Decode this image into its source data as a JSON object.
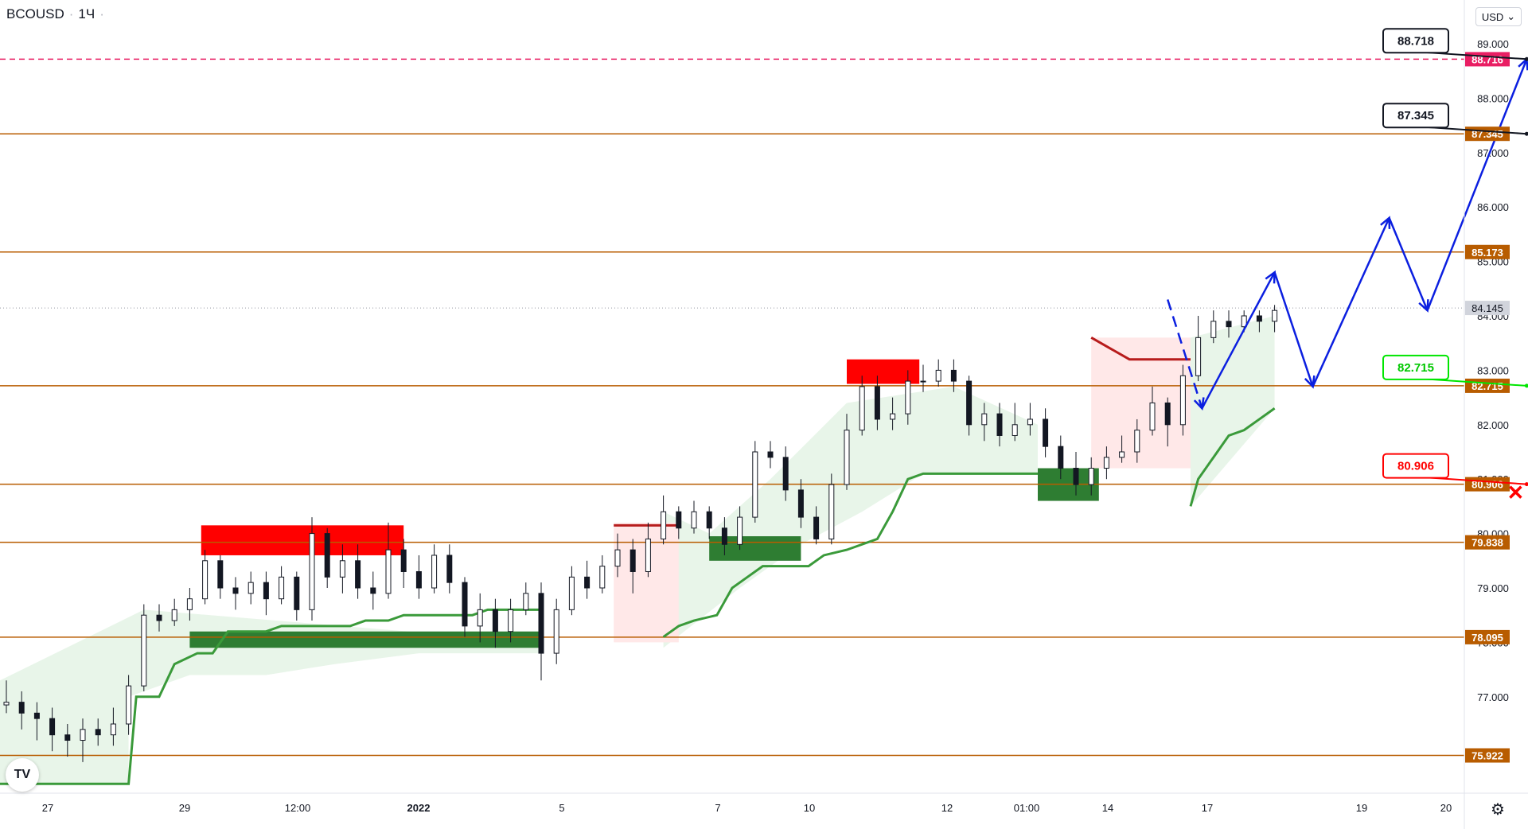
{
  "header": {
    "symbol": "BCOUSD",
    "separator": "·",
    "timeframe": "1Ч",
    "more": "·"
  },
  "currency_button": {
    "label": "USD",
    "icon": "chevron-down-icon"
  },
  "logo_text": "TV",
  "settings_icon": "gear-icon",
  "colors": {
    "level_line": "#b85c00",
    "level_label_bg": "#b85c00",
    "resistance_zone": "#ff0000",
    "support_zone": "#2e7d32",
    "forecast": "#0b1fe0",
    "stop_level": "#e91e63",
    "trend_line": "#3a9a3a",
    "trend_fill": "#e8f5e9",
    "bear_line": "#b71c1c",
    "bear_fill": "#ffe8e8",
    "candles": "#131722",
    "target_box_green": "#00e600",
    "target_box_red": "#ff0000"
  },
  "chart_data": {
    "type": "candlestick",
    "symbol": "BCOUSD",
    "interval": "1Ч",
    "currency": "USD",
    "ylim": [
      75.4,
      89.4
    ],
    "y_ticks": [
      "77.000",
      "78.000",
      "79.000",
      "80.000",
      "81.000",
      "82.000",
      "83.000",
      "84.000",
      "85.000",
      "86.000",
      "87.000",
      "88.000",
      "89.000"
    ],
    "x_ticks": [
      "27",
      "29",
      "12:00",
      "2022",
      "5",
      "7",
      "10",
      "12",
      "01:00",
      "14",
      "17",
      "19",
      "20"
    ],
    "current_price": "84.145",
    "stop_line": "88.716",
    "horizontal_levels": [
      "87.345",
      "85.173",
      "82.715",
      "80.906",
      "79.838",
      "78.095",
      "75.922"
    ],
    "target_labels": [
      {
        "text": "88.718",
        "style": "dark"
      },
      {
        "text": "87.345",
        "style": "dark"
      },
      {
        "text": "82.715",
        "style": "green"
      },
      {
        "text": "80.906",
        "style": "red"
      }
    ],
    "resistance_zones": [
      {
        "from_x": 28.55,
        "to_x": 31.2,
        "y_low": 79.6,
        "y_high": 80.15
      },
      {
        "from_x": 37.0,
        "to_x": 37.95,
        "y_low": 82.75,
        "y_high": 83.2
      }
    ],
    "support_zones": [
      {
        "from_x": 28.4,
        "to_x": 33.0,
        "y_low": 77.9,
        "y_high": 78.2
      },
      {
        "from_x": 35.2,
        "to_x": 36.4,
        "y_low": 79.5,
        "y_high": 79.95
      },
      {
        "from_x": 39.5,
        "to_x": 40.3,
        "y_low": 80.6,
        "y_high": 81.2
      }
    ],
    "forecast_path": [
      {
        "x": 41.2,
        "y": 84.3
      },
      {
        "x": 41.65,
        "y": 82.3
      },
      {
        "x": 42.6,
        "y": 84.8
      },
      {
        "x": 43.1,
        "y": 82.7
      },
      {
        "x": 44.1,
        "y": 85.8
      },
      {
        "x": 44.6,
        "y": 84.1
      },
      {
        "x": 45.9,
        "y": 88.718
      }
    ],
    "candles": [
      [
        26.0,
        76.85,
        76.9,
        77.3,
        76.7
      ],
      [
        26.2,
        76.9,
        76.7,
        77.1,
        76.4
      ],
      [
        26.4,
        76.7,
        76.6,
        76.9,
        76.2
      ],
      [
        26.6,
        76.6,
        76.3,
        76.8,
        76.0
      ],
      [
        26.8,
        76.3,
        76.2,
        76.5,
        75.9
      ],
      [
        27.0,
        76.2,
        76.4,
        76.6,
        75.8
      ],
      [
        27.2,
        76.4,
        76.3,
        76.6,
        76.1
      ],
      [
        27.4,
        76.3,
        76.5,
        76.8,
        76.1
      ],
      [
        27.6,
        76.5,
        77.2,
        77.4,
        76.3
      ],
      [
        27.8,
        77.2,
        78.5,
        78.7,
        77.1
      ],
      [
        28.0,
        78.5,
        78.4,
        78.7,
        78.2
      ],
      [
        28.2,
        78.4,
        78.6,
        78.8,
        78.3
      ],
      [
        28.4,
        78.6,
        78.8,
        79.0,
        78.4
      ],
      [
        28.6,
        78.8,
        79.5,
        79.7,
        78.7
      ],
      [
        28.8,
        79.5,
        79.0,
        79.6,
        78.8
      ],
      [
        29.0,
        79.0,
        78.9,
        79.2,
        78.6
      ],
      [
        29.2,
        78.9,
        79.1,
        79.3,
        78.7
      ],
      [
        29.4,
        79.1,
        78.8,
        79.3,
        78.5
      ],
      [
        29.6,
        78.8,
        79.2,
        79.4,
        78.7
      ],
      [
        29.8,
        79.2,
        78.6,
        79.3,
        78.4
      ],
      [
        30.0,
        78.6,
        80.0,
        80.3,
        78.4
      ],
      [
        30.2,
        80.0,
        79.2,
        80.1,
        79.0
      ],
      [
        30.4,
        79.2,
        79.5,
        79.8,
        78.9
      ],
      [
        30.6,
        79.5,
        79.0,
        79.8,
        78.8
      ],
      [
        30.8,
        79.0,
        78.9,
        79.3,
        78.6
      ],
      [
        31.0,
        78.9,
        79.7,
        80.2,
        78.8
      ],
      [
        31.2,
        79.7,
        79.3,
        79.9,
        79.0
      ],
      [
        31.4,
        79.3,
        79.0,
        79.6,
        78.8
      ],
      [
        31.6,
        79.0,
        79.6,
        79.8,
        78.9
      ],
      [
        31.8,
        79.6,
        79.1,
        79.8,
        78.9
      ],
      [
        32.0,
        79.1,
        78.3,
        79.2,
        78.1
      ],
      [
        32.2,
        78.3,
        78.6,
        78.9,
        78.0
      ],
      [
        32.4,
        78.6,
        78.2,
        78.8,
        77.9
      ],
      [
        32.6,
        78.2,
        78.6,
        78.8,
        78.0
      ],
      [
        32.8,
        78.6,
        78.9,
        79.1,
        78.5
      ],
      [
        33.0,
        78.9,
        77.8,
        79.1,
        77.3
      ],
      [
        33.2,
        77.8,
        78.6,
        78.8,
        77.6
      ],
      [
        33.4,
        78.6,
        79.2,
        79.4,
        78.5
      ],
      [
        33.6,
        79.2,
        79.0,
        79.5,
        78.8
      ],
      [
        33.8,
        79.0,
        79.4,
        79.6,
        78.9
      ],
      [
        34.0,
        79.4,
        79.7,
        80.0,
        79.2
      ],
      [
        34.2,
        79.7,
        79.3,
        79.9,
        78.9
      ],
      [
        34.4,
        79.3,
        79.9,
        80.2,
        79.2
      ],
      [
        34.6,
        79.9,
        80.4,
        80.7,
        79.8
      ],
      [
        34.8,
        80.4,
        80.1,
        80.5,
        79.9
      ],
      [
        35.0,
        80.1,
        80.4,
        80.6,
        80.0
      ],
      [
        35.2,
        80.4,
        80.1,
        80.5,
        79.9
      ],
      [
        35.4,
        80.1,
        79.8,
        80.3,
        79.6
      ],
      [
        35.6,
        79.8,
        80.3,
        80.5,
        79.7
      ],
      [
        35.8,
        80.3,
        81.5,
        81.7,
        80.2
      ],
      [
        36.0,
        81.5,
        81.4,
        81.7,
        81.2
      ],
      [
        36.2,
        81.4,
        80.8,
        81.6,
        80.6
      ],
      [
        36.4,
        80.8,
        80.3,
        81.0,
        80.1
      ],
      [
        36.6,
        80.3,
        79.9,
        80.5,
        79.8
      ],
      [
        36.8,
        79.9,
        80.9,
        81.1,
        79.8
      ],
      [
        37.0,
        80.9,
        81.9,
        82.2,
        80.8
      ],
      [
        37.2,
        81.9,
        82.7,
        82.9,
        81.8
      ],
      [
        37.4,
        82.7,
        82.1,
        82.9,
        81.9
      ],
      [
        37.6,
        82.1,
        82.2,
        82.5,
        81.9
      ],
      [
        37.8,
        82.2,
        82.8,
        83.0,
        82.0
      ],
      [
        38.0,
        82.8,
        82.8,
        83.1,
        82.6
      ],
      [
        38.2,
        82.8,
        83.0,
        83.2,
        82.7
      ],
      [
        38.4,
        83.0,
        82.8,
        83.2,
        82.6
      ],
      [
        38.6,
        82.8,
        82.0,
        82.9,
        81.8
      ],
      [
        38.8,
        82.0,
        82.2,
        82.4,
        81.7
      ],
      [
        39.0,
        82.2,
        81.8,
        82.4,
        81.6
      ],
      [
        39.2,
        81.8,
        82.0,
        82.4,
        81.7
      ],
      [
        39.4,
        82.0,
        82.1,
        82.4,
        81.8
      ],
      [
        39.6,
        82.1,
        81.6,
        82.3,
        81.4
      ],
      [
        39.8,
        81.6,
        81.2,
        81.8,
        81.0
      ],
      [
        40.0,
        81.2,
        80.9,
        81.5,
        80.7
      ],
      [
        40.2,
        80.9,
        81.2,
        81.4,
        80.7
      ],
      [
        40.4,
        81.2,
        81.4,
        81.6,
        81.0
      ],
      [
        40.6,
        81.4,
        81.5,
        81.8,
        81.3
      ],
      [
        40.8,
        81.5,
        81.9,
        82.1,
        81.3
      ],
      [
        41.0,
        81.9,
        82.4,
        82.7,
        81.8
      ],
      [
        41.2,
        82.4,
        82.0,
        82.5,
        81.6
      ],
      [
        41.4,
        82.0,
        82.9,
        83.1,
        81.8
      ],
      [
        41.6,
        82.9,
        83.6,
        84.0,
        82.8
      ],
      [
        41.8,
        83.6,
        83.9,
        84.1,
        83.5
      ],
      [
        42.0,
        83.9,
        83.8,
        84.1,
        83.6
      ],
      [
        42.2,
        83.8,
        84.0,
        84.1,
        83.7
      ],
      [
        42.4,
        84.0,
        83.9,
        84.1,
        83.7
      ],
      [
        42.6,
        83.9,
        84.1,
        84.2,
        83.7
      ]
    ]
  }
}
